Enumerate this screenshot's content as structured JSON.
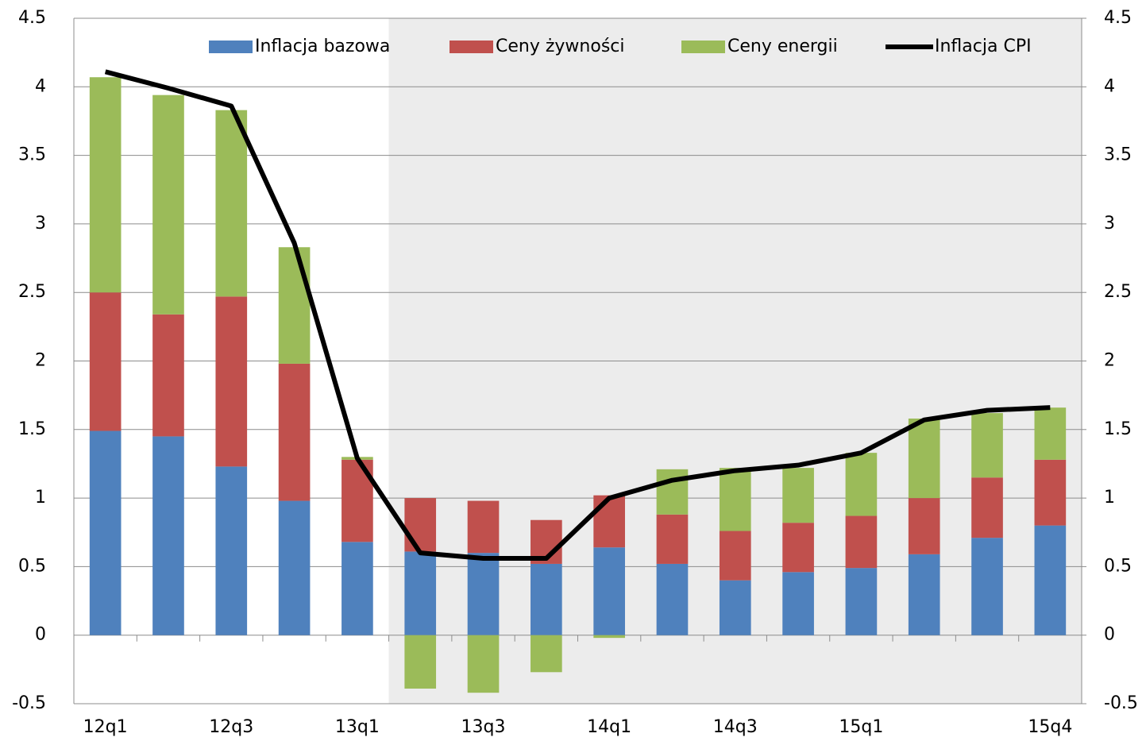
{
  "chart_data": {
    "type": "bar",
    "categories": [
      "12q1",
      null,
      "12q3",
      null,
      "13q1",
      null,
      "13q3",
      null,
      "14q1",
      null,
      "14q3",
      null,
      "15q1",
      null,
      null,
      "15q4"
    ],
    "series": [
      {
        "name": "Inflacja bazowa",
        "type": "bar",
        "color": "#4f81bd",
        "values": [
          1.49,
          1.45,
          1.23,
          0.98,
          0.68,
          0.61,
          0.6,
          0.52,
          0.64,
          0.52,
          0.4,
          0.46,
          0.49,
          0.59,
          0.71,
          0.8
        ]
      },
      {
        "name": "Ceny żywności",
        "type": "bar",
        "color": "#c0504d",
        "values": [
          1.01,
          0.89,
          1.24,
          1.0,
          0.6,
          0.39,
          0.38,
          0.32,
          0.38,
          0.36,
          0.36,
          0.36,
          0.38,
          0.41,
          0.44,
          0.48
        ]
      },
      {
        "name": "Ceny energii",
        "type": "bar",
        "color": "#9bbb59",
        "values": [
          1.57,
          1.6,
          1.36,
          0.85,
          0.02,
          -0.39,
          -0.42,
          -0.27,
          -0.02,
          0.33,
          0.46,
          0.4,
          0.46,
          0.58,
          0.47,
          0.38
        ]
      },
      {
        "name": "Inflacja CPI",
        "type": "line",
        "color": "#000000",
        "values": [
          4.11,
          3.99,
          3.86,
          2.86,
          1.29,
          0.6,
          0.56,
          0.56,
          1.0,
          1.13,
          1.2,
          1.24,
          1.33,
          1.57,
          1.64,
          1.66
        ]
      }
    ],
    "ylim": [
      -0.5,
      4.5
    ],
    "yticks": [
      -0.5,
      0,
      0.5,
      1,
      1.5,
      2,
      2.5,
      3,
      3.5,
      4,
      4.5
    ],
    "y2lim": [
      -0.5,
      4.5
    ],
    "y2ticks": [
      -0.5,
      0,
      0.5,
      1,
      1.5,
      2,
      2.5,
      3,
      3.5,
      4,
      4.5
    ],
    "grid": true,
    "legend": "top"
  }
}
